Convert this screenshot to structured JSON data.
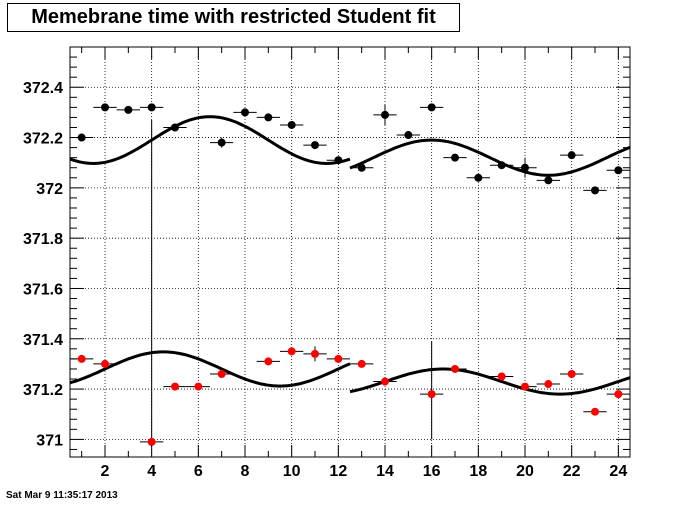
{
  "header": {
    "title": "Memebrane time with restricted Student fit",
    "timestamp": "Sat Mar  9 11:35:17 2013"
  },
  "chart_data": {
    "type": "scatter",
    "title": "Memebrane time with restricted Student fit",
    "xlim": [
      0.5,
      24.5
    ],
    "ylim": [
      370.93,
      372.56
    ],
    "x_ticks": [
      2,
      4,
      6,
      8,
      10,
      12,
      14,
      16,
      18,
      20,
      22,
      24
    ],
    "y_ticks": [
      371,
      371.2,
      371.4,
      371.6,
      371.8,
      372,
      372.2,
      372.4
    ],
    "grid": true,
    "xerr": 0.5,
    "series": [
      {
        "color": "#000000",
        "x": [
          1,
          2,
          3,
          4,
          5,
          6,
          7,
          8,
          9,
          10,
          11,
          12,
          13,
          14,
          15,
          16,
          17,
          18,
          19,
          20,
          21,
          22,
          23,
          24
        ],
        "y": [
          372.2,
          372.32,
          372.31,
          372.32,
          372.24,
          null,
          372.18,
          372.3,
          372.28,
          372.25,
          372.17,
          372.11,
          372.08,
          372.29,
          372.21,
          372.32,
          372.12,
          372.04,
          372.09,
          372.08,
          372.03,
          372.13,
          371.99,
          372.07
        ],
        "yerr": [
          0,
          0,
          0,
          0,
          0,
          0,
          0.02,
          0,
          0,
          0,
          0,
          0,
          0,
          0.04,
          0,
          0,
          0,
          0,
          0,
          0.04,
          0,
          0,
          0,
          0
        ]
      },
      {
        "color": "#ff0000",
        "x": [
          1,
          2,
          3,
          4,
          5,
          6,
          7,
          8,
          9,
          10,
          11,
          12,
          13,
          14,
          15,
          16,
          17,
          18,
          19,
          20,
          21,
          22,
          23,
          24
        ],
        "y": [
          371.32,
          371.3,
          null,
          370.99,
          371.21,
          371.21,
          371.26,
          null,
          371.31,
          371.35,
          371.34,
          371.32,
          371.3,
          371.23,
          null,
          371.18,
          371.28,
          null,
          371.25,
          371.21,
          371.22,
          371.26,
          371.11,
          371.18
        ],
        "yerr": [
          0,
          0,
          0,
          0,
          0,
          0,
          0,
          0,
          0,
          0,
          0.03,
          0,
          0,
          0,
          0,
          0,
          0,
          0,
          0,
          0,
          0,
          0,
          0,
          0
        ]
      }
    ],
    "tall_error_bars": [
      {
        "x": 4,
        "y_low": 370.99,
        "y_high": 372.27
      },
      {
        "x": 16,
        "y_low": 371.0,
        "y_high": 371.39
      }
    ],
    "fits": [
      {
        "x_range": [
          0.5,
          12.5
        ],
        "center": 372.19,
        "amplitude": 0.093,
        "period": 10,
        "phase_x": 4
      },
      {
        "x_range": [
          12.5,
          24.5
        ],
        "center": 372.12,
        "amplitude": 0.07,
        "period": 10,
        "phase_x": 13.5
      },
      {
        "x_range": [
          0.5,
          12.5
        ],
        "center": 371.28,
        "amplitude": 0.068,
        "period": 10,
        "phase_x": 2
      },
      {
        "x_range": [
          12.5,
          24.5
        ],
        "center": 371.23,
        "amplitude": 0.05,
        "period": 10,
        "phase_x": 14
      }
    ]
  }
}
